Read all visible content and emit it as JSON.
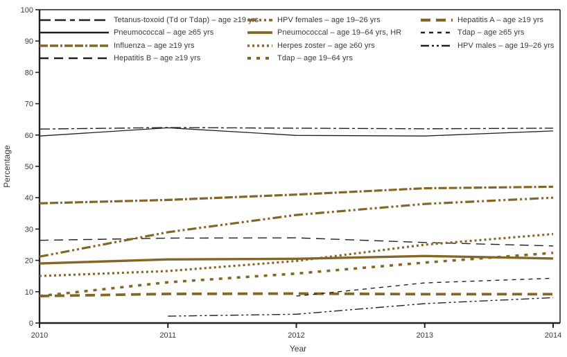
{
  "chart_data": {
    "type": "line",
    "title": "",
    "xlabel": "Year",
    "ylabel": "Percentage",
    "x": [
      2010,
      2011,
      2012,
      2013,
      2014
    ],
    "x_tick_labels": [
      "2010",
      "2011",
      "2012",
      "2013",
      "2014"
    ],
    "ylim": [
      0,
      100
    ],
    "y_tick_step": 10,
    "y_tick_labels": [
      "0",
      "10",
      "20",
      "30",
      "40",
      "50",
      "60",
      "70",
      "80",
      "90",
      "100"
    ],
    "grid": false,
    "legend_position": "top-left-inside",
    "colors": {
      "brown": "#846627",
      "dark": "#231f20",
      "text": "#37393c",
      "frame": "#231f20"
    },
    "legend_columns": [
      [
        0,
        1,
        2,
        3
      ],
      [
        4,
        5,
        6,
        7
      ],
      [
        8,
        9,
        10
      ]
    ],
    "series": [
      {
        "key": "tetanus-td-tdap-19plus",
        "label": "Tetanus-toxoid (Td or Tdap) – age ≥19 yrs",
        "color": "dark",
        "width": 1.4,
        "dash": "15 4 4 4",
        "legend_dash": "16 6 16 6 7 6",
        "values": [
          61.9,
          62.4,
          62.2,
          62.0,
          62.2
        ]
      },
      {
        "key": "pneumococcal-65plus",
        "label": "Pneumococcal – age ≥65 yrs",
        "color": "dark",
        "width": 1.3,
        "dash": "",
        "values": [
          59.7,
          62.3,
          59.9,
          59.7,
          61.3
        ]
      },
      {
        "key": "influenza-19plus",
        "label": "Influenza – age ≥19 yrs",
        "color": "brown",
        "width": 3.2,
        "dash": "12 3 12 3 3 3",
        "values": [
          38.2,
          39.3,
          41.0,
          43.0,
          43.5
        ]
      },
      {
        "key": "hepatitis-b-19plus",
        "label": "Hepatitis B – age ≥19 yrs",
        "color": "dark",
        "width": 1.4,
        "dash": "13 8",
        "values": [
          26.4,
          27.1,
          27.2,
          25.7,
          24.6
        ]
      },
      {
        "key": "hpv-females-19-26",
        "label": "HPV females – age 19–26 yrs",
        "color": "brown",
        "width": 3.2,
        "dash": "13 4 3 4 3 4",
        "values": [
          21.2,
          29.0,
          34.5,
          38.0,
          40.0
        ]
      },
      {
        "key": "pneumococcal-19-64-hr",
        "label": "Pneumococcal – age 19–64 yrs, HR",
        "color": "brown",
        "width": 3.4,
        "dash": "",
        "values": [
          19.0,
          20.3,
          20.5,
          21.4,
          20.6
        ]
      },
      {
        "key": "herpes-zoster-60plus",
        "label": "Herpes zoster – age ≥60 yrs",
        "color": "brown",
        "width": 3.2,
        "dash": "3 4",
        "values": [
          15.0,
          16.6,
          19.8,
          25.0,
          28.4
        ]
      },
      {
        "key": "tdap-19-64",
        "label": "Tdap – age 19–64 yrs",
        "color": "brown",
        "width": 3.6,
        "dash": "5 8",
        "values": [
          8.6,
          13.0,
          15.8,
          19.3,
          22.4
        ]
      },
      {
        "key": "hepatitis-a-19plus",
        "label": "Hepatitis A – age ≥19 yrs",
        "color": "brown",
        "width": 3.8,
        "dash": "14 8",
        "values": [
          8.6,
          9.3,
          9.4,
          9.2,
          9.2
        ]
      },
      {
        "key": "tdap-65plus",
        "label": "Tdap – age ≥65 yrs",
        "color": "dark",
        "width": 1.4,
        "dash": "6 6",
        "values": [
          null,
          null,
          8.6,
          12.8,
          14.3
        ]
      },
      {
        "key": "hpv-males-19-26",
        "label": "HPV males – age 19–26 yrs",
        "color": "dark",
        "width": 1.4,
        "dash": "12 4 3 4 3 4",
        "values": [
          null,
          2.2,
          2.8,
          6.2,
          8.1
        ]
      }
    ]
  }
}
